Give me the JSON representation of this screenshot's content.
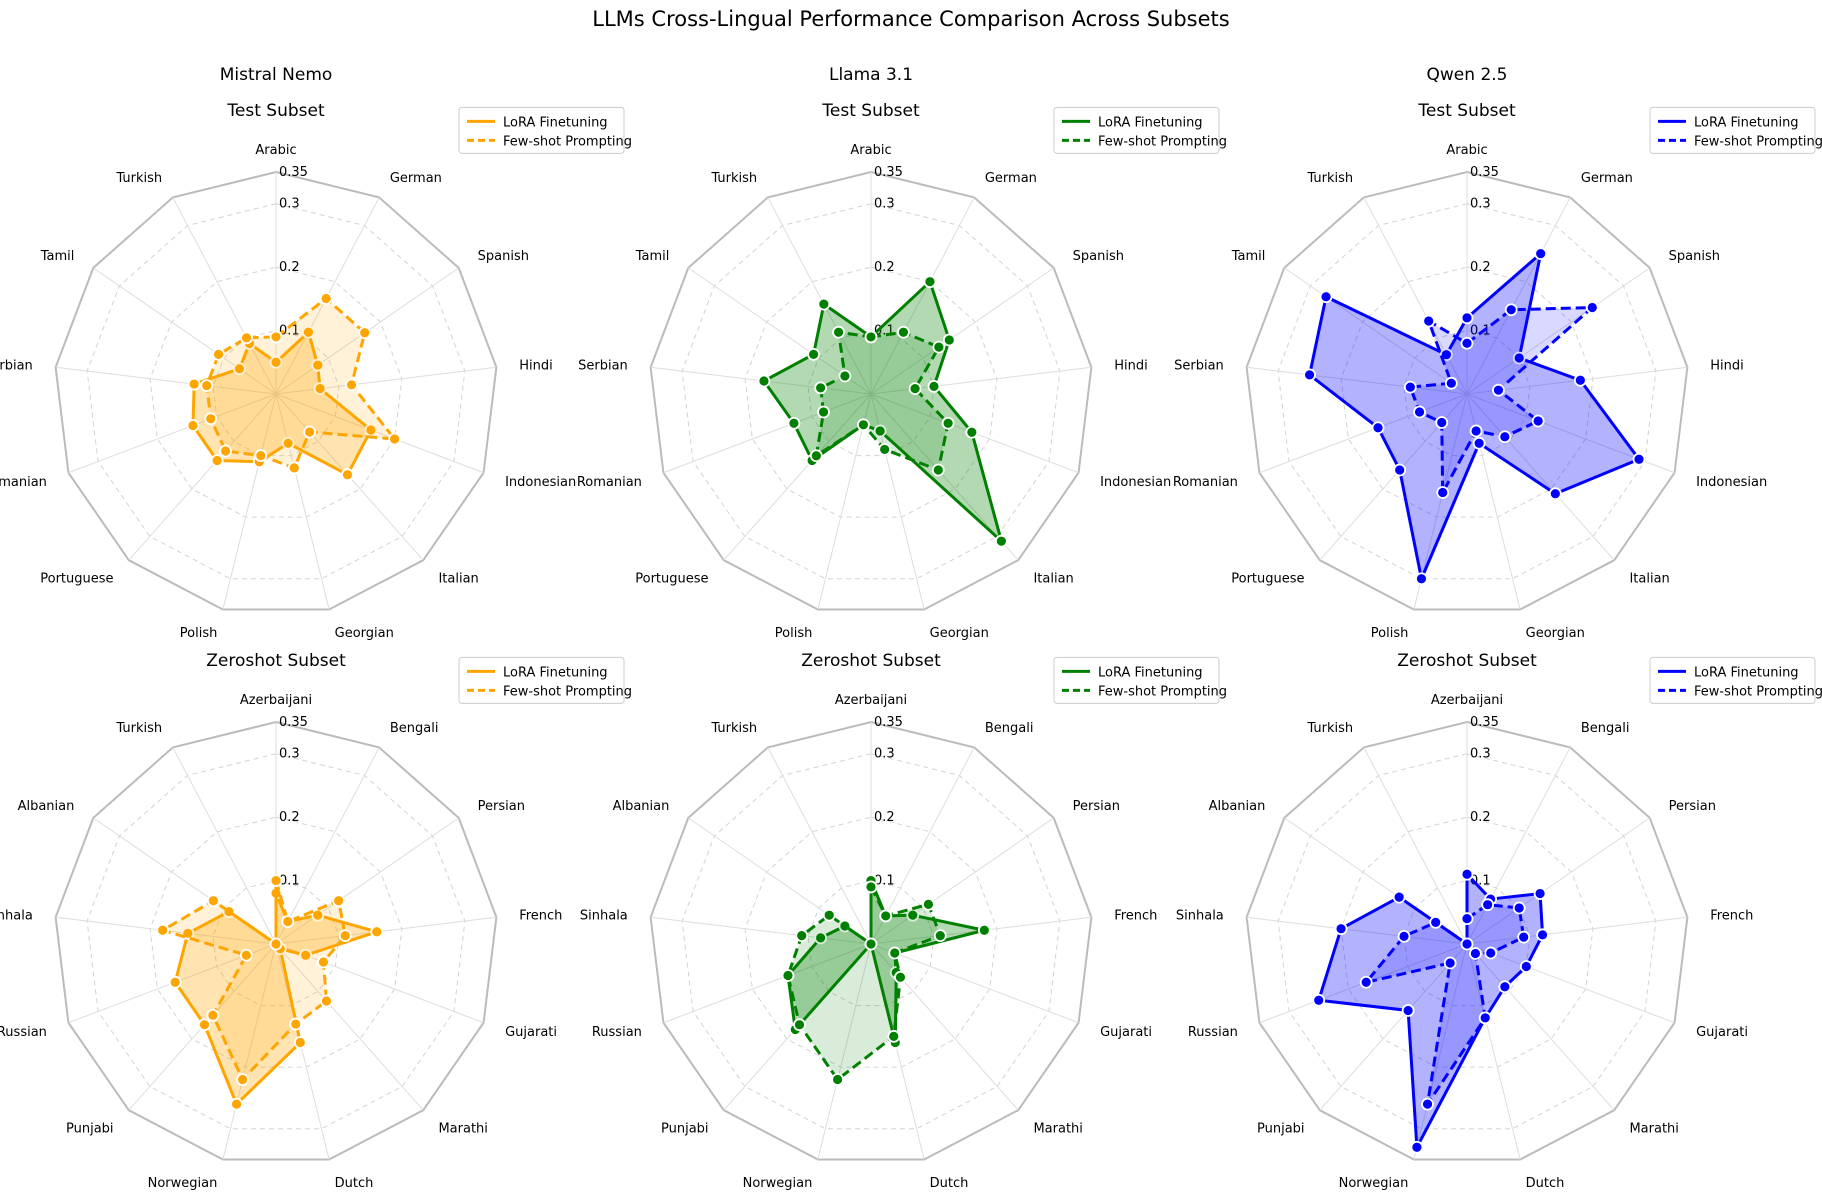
{
  "figure": {
    "title": "LLMs Cross-Lingual Performance Comparison Across Subsets",
    "model_titles": [
      "Mistral Nemo",
      "Llama 3.1",
      "Qwen 2.5"
    ]
  },
  "chart_data": [
    {
      "type": "radar",
      "model": "Mistral Nemo",
      "subtitle": "Test Subset",
      "color": "#FFA500",
      "categories": [
        "Arabic",
        "German",
        "Spanish",
        "Hindi",
        "Indonesian",
        "Italian",
        "Georgian",
        "Polish",
        "Portuguese",
        "Romanian",
        "Serbian",
        "Tamil",
        "Turkish"
      ],
      "rlim": [
        0,
        0.35
      ],
      "ticks": [
        0.1,
        0.2,
        0.3,
        0.35
      ],
      "ticklabels": [
        "0.1",
        "0.2",
        "0.3",
        "0.35"
      ],
      "legend": "upper right",
      "series": [
        {
          "name": "LoRA Finetuning",
          "style": "solid",
          "values": [
            0.05,
            0.11,
            0.08,
            0.07,
            0.16,
            0.17,
            0.08,
            0.11,
            0.14,
            0.14,
            0.13,
            0.07,
            0.09
          ]
        },
        {
          "name": "Few-shot Prompting",
          "style": "dashed",
          "values": [
            0.09,
            0.17,
            0.17,
            0.12,
            0.2,
            0.08,
            0.12,
            0.1,
            0.12,
            0.11,
            0.11,
            0.11,
            0.1
          ]
        }
      ]
    },
    {
      "type": "radar",
      "model": "Llama 3.1",
      "subtitle": "Test Subset",
      "color": "#008000",
      "categories": [
        "Arabic",
        "German",
        "Spanish",
        "Hindi",
        "Indonesian",
        "Italian",
        "Georgian",
        "Polish",
        "Portuguese",
        "Romanian",
        "Serbian",
        "Tamil",
        "Turkish"
      ],
      "rlim": [
        0,
        0.35
      ],
      "ticks": [
        0.1,
        0.2,
        0.3,
        0.35
      ],
      "ticklabels": [
        "0.1",
        "0.2",
        "0.3",
        "0.35"
      ],
      "legend": "upper right",
      "series": [
        {
          "name": "LoRA Finetuning",
          "style": "solid",
          "values": [
            0.09,
            0.2,
            0.15,
            0.1,
            0.17,
            0.31,
            0.06,
            0.05,
            0.14,
            0.13,
            0.17,
            0.11,
            0.16
          ]
        },
        {
          "name": "Few-shot Prompting",
          "style": "dashed",
          "values": [
            0.09,
            0.11,
            0.13,
            0.07,
            0.13,
            0.16,
            0.09,
            0.05,
            0.13,
            0.08,
            0.08,
            0.05,
            0.11
          ]
        }
      ]
    },
    {
      "type": "radar",
      "model": "Qwen 2.5",
      "subtitle": "Test Subset",
      "color": "#0000FF",
      "categories": [
        "Arabic",
        "German",
        "Spanish",
        "Hindi",
        "Indonesian",
        "Italian",
        "Georgian",
        "Polish",
        "Portuguese",
        "Romanian",
        "Serbian",
        "Tamil",
        "Turkish"
      ],
      "rlim": [
        0,
        0.35
      ],
      "ticks": [
        0.1,
        0.2,
        0.3,
        0.35
      ],
      "ticklabels": [
        "0.1",
        "0.2",
        "0.3",
        "0.35"
      ],
      "legend": "upper right",
      "series": [
        {
          "name": "LoRA Finetuning",
          "style": "solid",
          "values": [
            0.12,
            0.25,
            0.1,
            0.18,
            0.29,
            0.21,
            0.08,
            0.3,
            0.16,
            0.15,
            0.25,
            0.27,
            0.07
          ]
        },
        {
          "name": "Few-shot Prompting",
          "style": "dashed",
          "values": [
            0.08,
            0.15,
            0.24,
            0.05,
            0.12,
            0.09,
            0.06,
            0.16,
            0.06,
            0.08,
            0.09,
            0.03,
            0.13
          ]
        }
      ]
    },
    {
      "type": "radar",
      "model": "Mistral Nemo",
      "subtitle": "Zeroshot Subset",
      "color": "#FFA500",
      "categories": [
        "Azerbaijani",
        "Bengali",
        "Persian",
        "French",
        "Gujarati",
        "Marathi",
        "Dutch",
        "Norwegian",
        "Punjabi",
        "Russian",
        "Sinhala",
        "Albanian",
        "Turkish"
      ],
      "rlim": [
        0,
        0.35
      ],
      "ticks": [
        0.1,
        0.2,
        0.3,
        0.35
      ],
      "ticklabels": [
        "0.1",
        "0.2",
        "0.3",
        "0.35"
      ],
      "legend": "upper right",
      "series": [
        {
          "name": "LoRA Finetuning",
          "style": "solid",
          "values": [
            0.08,
            0.04,
            0.08,
            0.16,
            0.05,
            0.01,
            0.16,
            0.26,
            0.17,
            0.17,
            0.14,
            0.09,
            0.0
          ]
        },
        {
          "name": "Few-shot Prompting",
          "style": "dashed",
          "values": [
            0.1,
            0.04,
            0.12,
            0.11,
            0.08,
            0.12,
            0.13,
            0.22,
            0.15,
            0.05,
            0.18,
            0.12,
            0.0
          ]
        }
      ]
    },
    {
      "type": "radar",
      "model": "Llama 3.1",
      "subtitle": "Zeroshot Subset",
      "color": "#008000",
      "categories": [
        "Azerbaijani",
        "Bengali",
        "Persian",
        "French",
        "Gujarati",
        "Marathi",
        "Dutch",
        "Norwegian",
        "Punjabi",
        "Russian",
        "Sinhala",
        "Albanian",
        "Turkish"
      ],
      "rlim": [
        0,
        0.35
      ],
      "ticks": [
        0.1,
        0.2,
        0.3,
        0.35
      ],
      "ticklabels": [
        "0.1",
        "0.2",
        "0.3",
        "0.35"
      ],
      "legend": "upper right",
      "series": [
        {
          "name": "LoRA Finetuning",
          "style": "solid",
          "values": [
            0.1,
            0.05,
            0.08,
            0.18,
            0.04,
            0.06,
            0.16,
            0.0,
            0.18,
            0.14,
            0.08,
            0.05,
            0.0
          ]
        },
        {
          "name": "Few-shot Prompting",
          "style": "dashed",
          "values": [
            0.09,
            0.05,
            0.11,
            0.11,
            0.04,
            0.07,
            0.15,
            0.22,
            0.17,
            0.14,
            0.11,
            0.08,
            0.0
          ]
        }
      ]
    },
    {
      "type": "radar",
      "model": "Qwen 2.5",
      "subtitle": "Zeroshot Subset",
      "color": "#0000FF",
      "categories": [
        "Azerbaijani",
        "Bengali",
        "Persian",
        "French",
        "Gujarati",
        "Marathi",
        "Dutch",
        "Norwegian",
        "Punjabi",
        "Russian",
        "Sinhala",
        "Albanian",
        "Turkish"
      ],
      "rlim": [
        0,
        0.35
      ],
      "ticks": [
        0.1,
        0.2,
        0.3,
        0.35
      ],
      "ticklabels": [
        "0.1",
        "0.2",
        "0.3",
        "0.35"
      ],
      "legend": "upper right",
      "series": [
        {
          "name": "LoRA Finetuning",
          "style": "solid",
          "values": [
            0.11,
            0.08,
            0.14,
            0.12,
            0.1,
            0.09,
            0.12,
            0.33,
            0.14,
            0.25,
            0.2,
            0.13,
            0.0
          ]
        },
        {
          "name": "Few-shot Prompting",
          "style": "dashed",
          "values": [
            0.04,
            0.07,
            0.1,
            0.09,
            0.04,
            0.02,
            0.12,
            0.26,
            0.04,
            0.17,
            0.1,
            0.06,
            0.0
          ]
        }
      ]
    }
  ]
}
